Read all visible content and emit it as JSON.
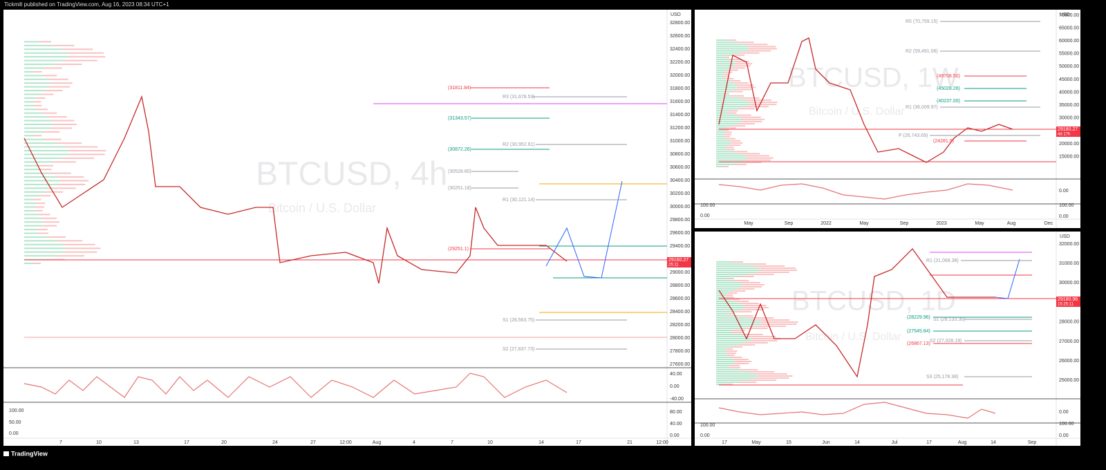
{
  "header": {
    "text": "Tickmill published on TradingView.com, Aug 16, 2023 08:34 UTC+1"
  },
  "footer": {
    "brand": "TradingView"
  },
  "panels": [
    {
      "watermark": "BTCUSD, 4h",
      "subtitle": "Bitcoin / U.S. Dollar",
      "currency": "USD",
      "price_axis": [
        "32800.00",
        "32600.00",
        "32400.00",
        "32200.00",
        "32000.00",
        "31800.00",
        "31600.00",
        "31400.00",
        "31200.00",
        "31000.00",
        "30800.00",
        "30600.00",
        "30400.00",
        "30200.00",
        "30000.00",
        "29800.00",
        "29600.00",
        "29400.00",
        "29200.00",
        "29000.00",
        "28800.00",
        "28600.00",
        "28400.00",
        "28200.00",
        "28000.00",
        "27800.00",
        "27600.00"
      ],
      "osc_axis": [
        "40.00",
        "0.00",
        "-40.00",
        "80.00",
        "40.00",
        "0.00"
      ],
      "osc_axis_left": [
        "100.00",
        "50.00",
        "0.00"
      ],
      "time_axis": [
        "7",
        "10",
        "13",
        "17",
        "20",
        "24",
        "27",
        "12:00",
        "Aug",
        "4",
        "7",
        "10",
        "14",
        "17",
        "21",
        "12:00"
      ],
      "levels": [
        "(31811.84)",
        "R3 (31,678.53)",
        "(31343.57)",
        "R2 (30,952.61)",
        "(30872.26)",
        "(30528.80)",
        "(30251.18)",
        "R1 (30,121.14)",
        "(29251.1)",
        "S1 (28,563.75)",
        "S2 (27,837.73)"
      ],
      "price_tag": {
        "price": "29160.27",
        "countdown": "25:11"
      }
    },
    {
      "watermark": "BTCUSD, 1W",
      "subtitle": "Bitcoin / U.S. Dollar",
      "currency": "USD",
      "price_axis": [
        "70000.00",
        "65000.00",
        "60000.00",
        "55000.00",
        "50000.00",
        "45000.00",
        "40000.00",
        "35000.00",
        "30000.00",
        "25000.00",
        "20000.00",
        "15000.00"
      ],
      "osc_axis": [
        "0.00",
        "100.00",
        "0.00"
      ],
      "osc_axis_left": [
        "100.00",
        "0.00"
      ],
      "time_axis": [
        "May",
        "Sep",
        "2022",
        "May",
        "Sep",
        "2023",
        "May",
        "Aug",
        "Dec"
      ],
      "levels": [
        "R5 (70,759.15)",
        "R2 (59,491.06)",
        "(49708.50)",
        "(45028.26)",
        "(40237.00)",
        "R1 (36,009.97)",
        "P (26,743.69)",
        "(24281.9)"
      ],
      "price_tag": {
        "price": "29180.27",
        "countdown": "4d 17h"
      }
    },
    {
      "watermark": "BTCUSD, 1D",
      "subtitle": "Bitcoin / U.S. Dollar",
      "currency": "USD",
      "price_axis": [
        "32000.00",
        "31000.00",
        "30000.00",
        "29000.00",
        "28000.00",
        "27000.00",
        "26000.00",
        "25000.00"
      ],
      "osc_axis": [
        "0.00",
        "100.00",
        "0.00"
      ],
      "osc_axis_left": [
        "100.00",
        "0.00"
      ],
      "time_axis": [
        "17",
        "May",
        "15",
        "Jun",
        "14",
        "Jul",
        "17",
        "Aug",
        "14",
        "Sep"
      ],
      "levels": [
        "R1 (31,068.38)",
        "(28229.96)",
        "S1 (28,133.38)",
        "(27545.84)",
        "S2 (27,028.19)",
        "(26867.13)",
        "S3 (25,178.38)"
      ],
      "price_tag": {
        "price": "29180.96",
        "countdown": "15:25:11"
      }
    }
  ]
}
